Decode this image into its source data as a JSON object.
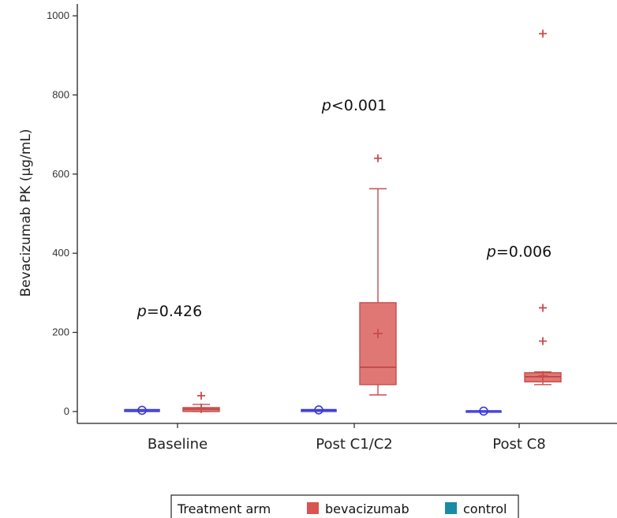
{
  "chart_data": {
    "type": "box",
    "ylabel": "Bevacizumab PK (µg/mL)",
    "xlabel": "",
    "ylim": [
      -30,
      1030
    ],
    "yticks": [
      0,
      200,
      400,
      600,
      800,
      1000
    ],
    "categories": [
      "Baseline",
      "Post C1/C2",
      "Post C8"
    ],
    "legend": {
      "title": "Treatment arm",
      "position": "bottom-center",
      "entries": [
        {
          "name": "bevacizumab",
          "color": "#d9534f"
        },
        {
          "name": "control",
          "color": "#1a8aa6"
        }
      ]
    },
    "series": [
      {
        "name": "control",
        "marker": "circle",
        "line_color": "#3a3ad9",
        "boxes": [
          {
            "category": "Baseline",
            "q1": 0,
            "median": 2,
            "q3": 5,
            "whisker_low": 0,
            "whisker_high": 5,
            "mean": 3,
            "outliers": []
          },
          {
            "category": "Post C1/C2",
            "q1": 0,
            "median": 3,
            "q3": 5,
            "whisker_low": 0,
            "whisker_high": 5,
            "mean": 4,
            "outliers": []
          },
          {
            "category": "Post C8",
            "q1": 0,
            "median": 1,
            "q3": 2,
            "whisker_low": 0,
            "whisker_high": 2,
            "mean": 1,
            "outliers": []
          }
        ]
      },
      {
        "name": "bevacizumab",
        "marker": "plus",
        "line_color": "#c94c4c",
        "fill_color": "#d9605c",
        "boxes": [
          {
            "category": "Baseline",
            "q1": 0,
            "median": 6,
            "q3": 10,
            "whisker_low": 0,
            "whisker_high": 18,
            "mean": 8,
            "outliers": [
              40
            ]
          },
          {
            "category": "Post C1/C2",
            "q1": 68,
            "median": 112,
            "q3": 275,
            "whisker_low": 42,
            "whisker_high": 563,
            "mean": 197,
            "outliers": [
              640
            ]
          },
          {
            "category": "Post C8",
            "q1": 75,
            "median": 88,
            "q3": 98,
            "whisker_low": 68,
            "whisker_high": 100,
            "mean": 90,
            "outliers": [
              178,
              262,
              955
            ]
          }
        ]
      }
    ],
    "annotations": [
      {
        "category": "Baseline",
        "p": "p",
        "rest": "=0.426",
        "y": 255
      },
      {
        "category": "Post C1/C2",
        "p": "p",
        "rest": "<0.001",
        "y": 775
      },
      {
        "category": "Post C8",
        "p": "p",
        "rest": "=0.006",
        "y": 405
      }
    ]
  }
}
